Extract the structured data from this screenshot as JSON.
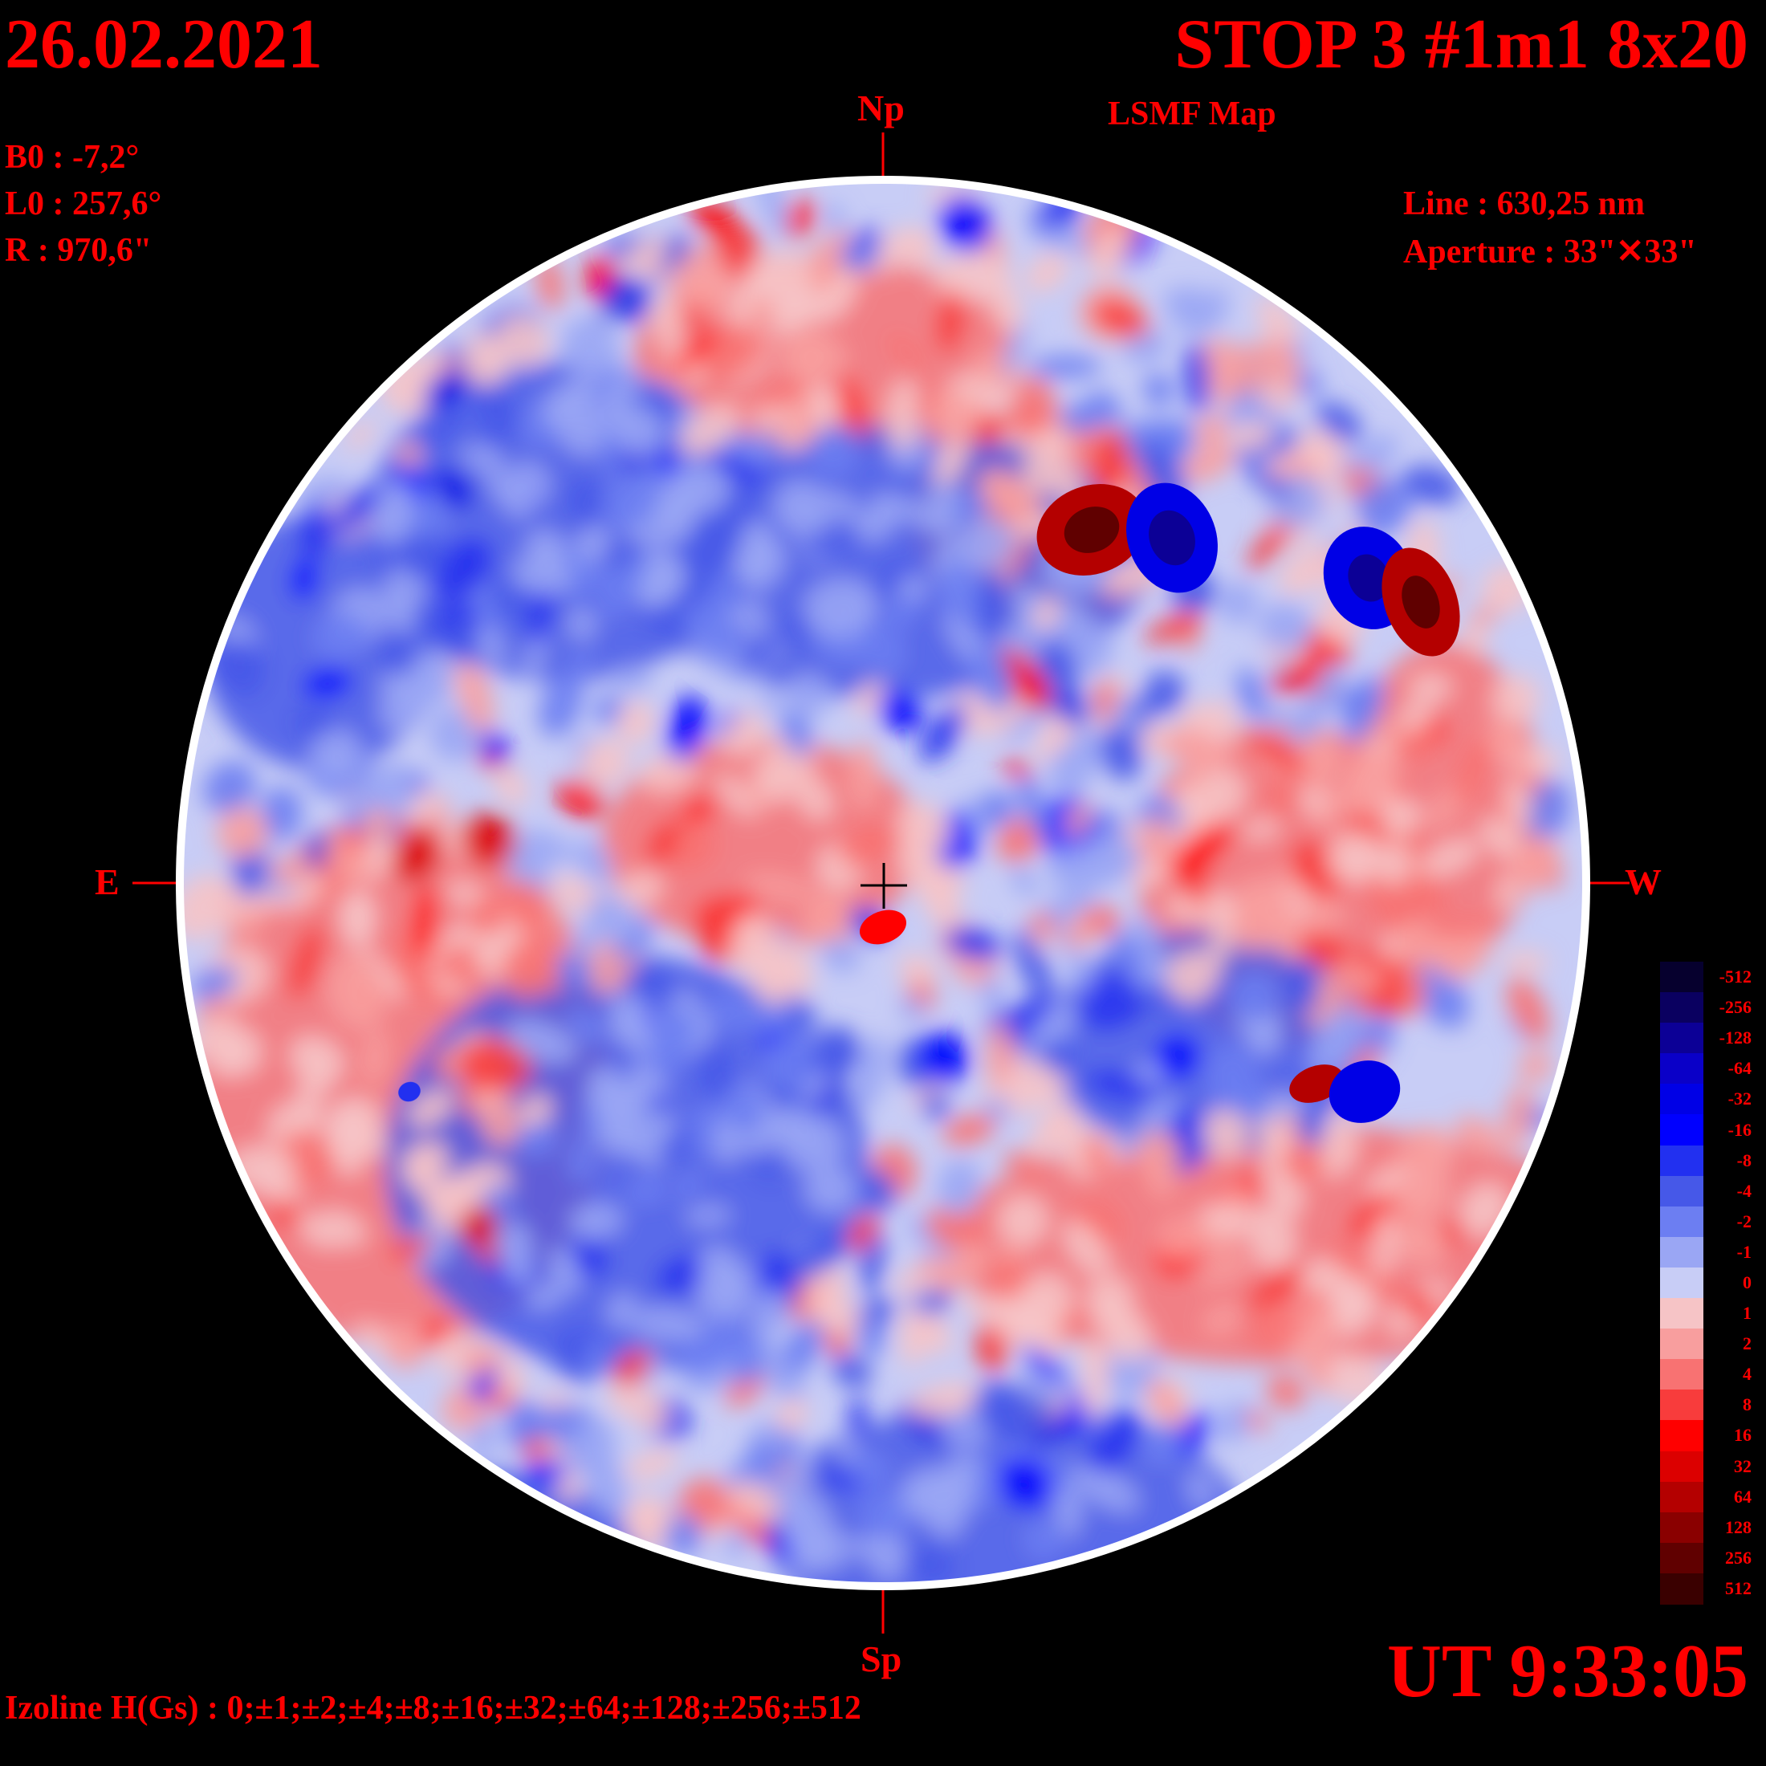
{
  "header": {
    "date": "26.02.2021",
    "title": "STOP 3 #1m1 8x20",
    "subtitle": "LSMF  Map"
  },
  "parameters": {
    "b0": "B0 : -7,2°",
    "l0": "L0 : 257,6°",
    "radius": "R  : 970,6\"",
    "line": "Line :  630,25 nm",
    "aperture": "Aperture : 33\"✕33\""
  },
  "orientation": {
    "north": "Np",
    "south": "Sp",
    "east": "E",
    "west": "W"
  },
  "footer": {
    "time": "UT 9:33:05",
    "izoline": "Izoline H(Gs) : 0;±1;±2;±4;±8;±16;±32;±64;±128;±256;±512"
  },
  "colorbar": {
    "levels": [
      {
        "label": "-512",
        "color": "#06002e"
      },
      {
        "label": "-256",
        "color": "#0a0060"
      },
      {
        "label": "-128",
        "color": "#0c0096"
      },
      {
        "label": "-64",
        "color": "#0a00c8"
      },
      {
        "label": "-32",
        "color": "#0000e6"
      },
      {
        "label": "-16",
        "color": "#0000ff"
      },
      {
        "label": "-8",
        "color": "#2230f0"
      },
      {
        "label": "-4",
        "color": "#4658e8"
      },
      {
        "label": "-2",
        "color": "#6c7ef2"
      },
      {
        "label": "-1",
        "color": "#9aa6f4"
      },
      {
        "label": "0",
        "color": "#c8cdf6"
      },
      {
        "label": "1",
        "color": "#f6c4c6"
      },
      {
        "label": "2",
        "color": "#f89e9e"
      },
      {
        "label": "4",
        "color": "#f87272"
      },
      {
        "label": "8",
        "color": "#f83c3c"
      },
      {
        "label": "16",
        "color": "#ff0000"
      },
      {
        "label": "32",
        "color": "#dc0000"
      },
      {
        "label": "64",
        "color": "#b40000"
      },
      {
        "label": "128",
        "color": "#8a0000"
      },
      {
        "label": "256",
        "color": "#600000"
      },
      {
        "label": "512",
        "color": "#3a0000"
      }
    ]
  },
  "colors": {
    "text": "#ff0000",
    "background": "#000000",
    "disk_rim": "#ffffff"
  }
}
